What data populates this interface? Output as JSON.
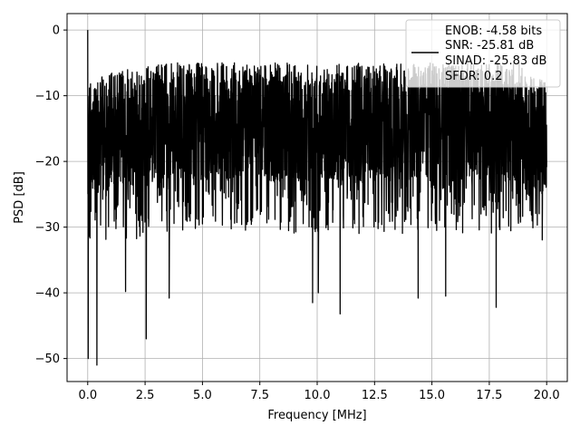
{
  "chart_data": {
    "type": "line",
    "title": "",
    "xlabel": "Frequency [MHz]",
    "ylabel": "PSD [dB]",
    "xlim": [
      -0.9,
      20.9
    ],
    "ylim": [
      -53.5,
      2.5
    ],
    "xticks": [
      0.0,
      2.5,
      5.0,
      7.5,
      10.0,
      12.5,
      15.0,
      17.5,
      20.0
    ],
    "xtick_labels": [
      "0.0",
      "2.5",
      "5.0",
      "7.5",
      "10.0",
      "12.5",
      "15.0",
      "17.5",
      "20.0"
    ],
    "yticks": [
      0,
      -10,
      -20,
      -30,
      -40,
      -50
    ],
    "ytick_labels": [
      "0",
      "−10",
      "−20",
      "−30",
      "−40",
      "−50"
    ],
    "grid": true,
    "legend_position": "upper-right",
    "legend_lines": [
      "ENOB: -4.58 bits",
      "SNR: -25.81 dB",
      "SINAD: -25.83 dB",
      "SFDR: 0.2"
    ],
    "series": [
      {
        "color": "#000000",
        "description": "noise-like PSD trace; values roughly between -5 and -30 dB with deep dips",
        "spikes": [
          {
            "x": 0.0,
            "y": 0.0
          },
          {
            "x": 0.02,
            "y": -50.0
          },
          {
            "x": 0.4,
            "y": -51.0
          },
          {
            "x": 1.65,
            "y": -39.8
          },
          {
            "x": 2.55,
            "y": -47.0
          },
          {
            "x": 3.55,
            "y": -40.8
          },
          {
            "x": 9.8,
            "y": -41.5
          },
          {
            "x": 10.05,
            "y": -40.0
          },
          {
            "x": 11.0,
            "y": -43.2
          },
          {
            "x": 14.4,
            "y": -40.8
          },
          {
            "x": 15.6,
            "y": -40.5
          },
          {
            "x": 17.8,
            "y": -42.2
          }
        ]
      }
    ]
  }
}
